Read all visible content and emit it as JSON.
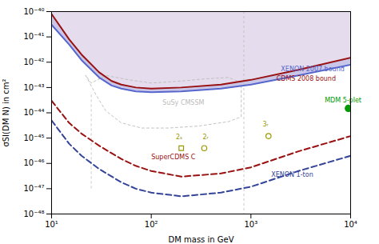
{
  "chart_data": {
    "type": "line",
    "log": true,
    "xlabel": "DM mass in GeV",
    "ylabel": "σSI(DM N) in cm²",
    "xlim": [
      10,
      10000
    ],
    "ylim": [
      1e-48,
      1e-40
    ],
    "xticks": [
      {
        "value": 10,
        "label": "10¹"
      },
      {
        "value": 100,
        "label": "10²"
      },
      {
        "value": 1000,
        "label": "10³"
      },
      {
        "value": 10000,
        "label": "10⁴"
      }
    ],
    "yticks": [
      {
        "value": 1e-48,
        "label": "10⁻⁴⁸"
      },
      {
        "value": 1e-47,
        "label": "10⁻⁴⁷"
      },
      {
        "value": 1e-46,
        "label": "10⁻⁴⁶"
      },
      {
        "value": 1e-45,
        "label": "10⁻⁴⁵"
      },
      {
        "value": 1e-44,
        "label": "10⁻⁴⁴"
      },
      {
        "value": 1e-43,
        "label": "10⁻⁴³"
      },
      {
        "value": 1e-42,
        "label": "10⁻⁴²"
      },
      {
        "value": 1e-41,
        "label": "10⁻⁴¹"
      },
      {
        "value": 1e-40,
        "label": "10⁻⁴⁰"
      }
    ],
    "series": [
      {
        "name": "XENON 2007 bound",
        "type": "line",
        "color": "#5566cc",
        "fill_color": "#cfc0df",
        "x": [
          10,
          15,
          20,
          30,
          40,
          50,
          70,
          100,
          200,
          500,
          1000,
          3000,
          10000
        ],
        "values": [
          3e-41,
          5e-42,
          1.2e-42,
          2.5e-43,
          1.2e-43,
          9e-44,
          7e-44,
          6.5e-44,
          7e-44,
          9e-44,
          1.3e-43,
          3e-43,
          8e-43
        ],
        "annotation": {
          "x": 2000,
          "y": 5.5e-43
        }
      },
      {
        "name": "CDMS 2008 bound",
        "type": "line",
        "color": "#991111",
        "x": [
          10,
          15,
          20,
          30,
          40,
          50,
          70,
          100,
          200,
          500,
          1000,
          3000,
          10000
        ],
        "values": [
          8e-41,
          8e-42,
          2e-42,
          4e-43,
          1.8e-43,
          1.3e-43,
          1e-43,
          9e-44,
          1e-43,
          1.3e-43,
          2e-43,
          5e-43,
          1.5e-42
        ],
        "annotation": {
          "x": 1800,
          "y": 2.2e-43
        }
      },
      {
        "name": "SuSy CMSSM",
        "type": "line",
        "line_style": "dotted",
        "color": "#bbbbbb",
        "x": [
          22,
          28,
          35,
          50,
          80,
          150,
          300,
          600,
          800,
          800,
          600,
          350,
          200,
          100,
          60,
          35,
          25,
          22
        ],
        "values": [
          3e-43,
          5e-44,
          1.2e-44,
          4e-45,
          2.5e-45,
          2.5e-45,
          3e-45,
          4.5e-45,
          7e-45,
          1.5e-43,
          2.5e-43,
          2.2e-43,
          1.8e-43,
          1.5e-43,
          2e-43,
          3e-43,
          1.5e-43,
          3e-43
        ],
        "annotation": {
          "x": 130,
          "y": 2.5e-44
        }
      },
      {
        "name": "SuperCDMS C",
        "type": "line",
        "line_style": "dashed",
        "color": "#991111",
        "x": [
          10,
          15,
          20,
          30,
          50,
          70,
          100,
          200,
          500,
          1000,
          3000,
          10000
        ],
        "values": [
          3e-44,
          4e-45,
          1.5e-45,
          5e-46,
          1.5e-46,
          8e-47,
          5e-47,
          3e-47,
          4e-47,
          7e-47,
          3e-46,
          1.2e-45
        ],
        "annotation": {
          "x": 100,
          "y": 1.8e-46
        }
      },
      {
        "name": "XENON 1-ton",
        "type": "line",
        "line_style": "dashed",
        "color": "#334499",
        "x": [
          10,
          15,
          20,
          30,
          50,
          70,
          100,
          200,
          500,
          1000,
          3000,
          10000
        ],
        "values": [
          5e-45,
          6e-46,
          2e-46,
          6e-47,
          1.8e-47,
          1e-47,
          7e-48,
          5e-48,
          7e-48,
          1.2e-47,
          5e-47,
          2e-46
        ],
        "annotation": {
          "x": 1600,
          "y": 3.5e-47
        }
      },
      {
        "name": "MDM 5-plet",
        "type": "scatter",
        "marker": "circle",
        "color": "#009900",
        "x": [
          9500
        ],
        "values": [
          1.5e-44
        ],
        "annotation": {
          "x": 5500,
          "y": 3e-44
        }
      },
      {
        "name": "2ₛ",
        "type": "scatter",
        "marker": "open square",
        "color": "#999900",
        "x": [
          200
        ],
        "values": [
          4e-46
        ],
        "annotation": {
          "x": 190,
          "y": 8.8e-46
        }
      },
      {
        "name": "2ᵣ",
        "type": "scatter",
        "marker": "open circle",
        "color": "#999900",
        "x": [
          340
        ],
        "values": [
          4e-46
        ],
        "annotation": {
          "x": 350,
          "y": 8.8e-46
        }
      },
      {
        "name": "3ᵣ",
        "type": "scatter",
        "marker": "open circle",
        "color": "#999900",
        "x": [
          1500
        ],
        "values": [
          1.2e-45
        ],
        "annotation": {
          "x": 1400,
          "y": 3e-45
        }
      }
    ],
    "vlines": [
      {
        "x": 850,
        "color": "#bbbbbb",
        "line_style": "dotted"
      },
      {
        "x": 25,
        "y": [
          1e-47,
          5e-44
        ],
        "color": "#bbbbbb",
        "line_style": "dotted"
      }
    ]
  }
}
